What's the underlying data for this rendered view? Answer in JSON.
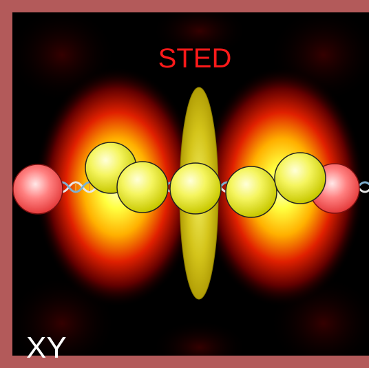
{
  "figure": {
    "title": "STED",
    "corner_label": "XY",
    "colors": {
      "frame": "#b35a5a",
      "background": "#000000",
      "title": "#ff1a1a",
      "corner_label": "#ffffff",
      "yellow_bead": "#e6e600",
      "red_bead": "#ff5a5a",
      "focus_ellipse": "#c8b400"
    }
  }
}
